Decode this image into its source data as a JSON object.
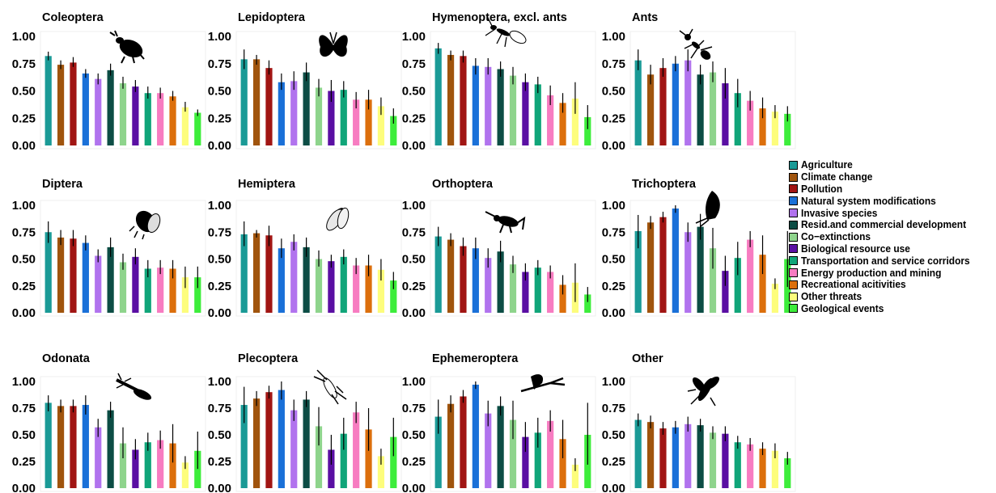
{
  "chart_data": {
    "type": "bar",
    "ylim": [
      0,
      1
    ],
    "yticks": [
      "0.00",
      "0.25",
      "0.50",
      "0.75",
      "1.00"
    ],
    "categories": [
      "Agriculture",
      "Climate change",
      "Pollution",
      "Natural system modifications",
      "Invasive species",
      "Resid.and commercial development",
      "Co−extinctions",
      "Biological resource use",
      "Transportation and service corridors",
      "Energy production and mining",
      "Recreational acitivities",
      "Other threats",
      "Geological events"
    ],
    "colors": [
      "#1a9a96",
      "#a0540d",
      "#a11513",
      "#1a70d8",
      "#b173ee",
      "#0c4d45",
      "#8ed48c",
      "#5a0fa3",
      "#10a579",
      "#f77cc1",
      "#dc6f0c",
      "#fdfd7c",
      "#3ded3b"
    ],
    "legend_position": "right",
    "panels": [
      {
        "title": "Coleoptera",
        "icon": "beetle-icon",
        "values": [
          0.82,
          0.74,
          0.76,
          0.66,
          0.61,
          0.69,
          0.57,
          0.54,
          0.48,
          0.48,
          0.45,
          0.35,
          0.3
        ],
        "lower": [
          0.78,
          0.7,
          0.72,
          0.62,
          0.56,
          0.64,
          0.52,
          0.49,
          0.43,
          0.43,
          0.41,
          0.31,
          0.27
        ],
        "upper": [
          0.86,
          0.78,
          0.81,
          0.7,
          0.66,
          0.75,
          0.63,
          0.6,
          0.54,
          0.53,
          0.5,
          0.4,
          0.33
        ]
      },
      {
        "title": "Lepidoptera",
        "icon": "butterfly-icon",
        "values": [
          0.79,
          0.79,
          0.71,
          0.58,
          0.59,
          0.67,
          0.53,
          0.5,
          0.51,
          0.42,
          0.42,
          0.36,
          0.27
        ],
        "lower": [
          0.7,
          0.74,
          0.65,
          0.51,
          0.51,
          0.59,
          0.45,
          0.4,
          0.44,
          0.34,
          0.33,
          0.28,
          0.2
        ],
        "upper": [
          0.88,
          0.83,
          0.78,
          0.66,
          0.68,
          0.76,
          0.61,
          0.6,
          0.59,
          0.49,
          0.51,
          0.44,
          0.34
        ]
      },
      {
        "title": "Hymenoptera, excl. ants",
        "icon": "wasp-icon",
        "values": [
          0.89,
          0.83,
          0.82,
          0.73,
          0.72,
          0.7,
          0.64,
          0.58,
          0.56,
          0.46,
          0.39,
          0.43,
          0.26
        ],
        "lower": [
          0.84,
          0.78,
          0.76,
          0.65,
          0.65,
          0.63,
          0.56,
          0.5,
          0.48,
          0.37,
          0.3,
          0.29,
          0.15
        ],
        "upper": [
          0.94,
          0.87,
          0.87,
          0.8,
          0.8,
          0.77,
          0.72,
          0.66,
          0.63,
          0.55,
          0.48,
          0.58,
          0.37
        ]
      },
      {
        "title": "Ants",
        "icon": "ant-icon",
        "values": [
          0.78,
          0.65,
          0.71,
          0.75,
          0.78,
          0.65,
          0.67,
          0.57,
          0.48,
          0.41,
          0.34,
          0.31,
          0.29
        ],
        "lower": [
          0.69,
          0.56,
          0.63,
          0.68,
          0.68,
          0.56,
          0.58,
          0.43,
          0.35,
          0.32,
          0.25,
          0.25,
          0.22
        ],
        "upper": [
          0.88,
          0.74,
          0.8,
          0.82,
          0.88,
          0.74,
          0.77,
          0.71,
          0.61,
          0.5,
          0.44,
          0.37,
          0.36
        ]
      },
      {
        "title": "Diptera",
        "icon": "fly-icon",
        "values": [
          0.75,
          0.7,
          0.69,
          0.65,
          0.53,
          0.61,
          0.47,
          0.52,
          0.41,
          0.42,
          0.41,
          0.33,
          0.33
        ],
        "lower": [
          0.65,
          0.63,
          0.62,
          0.58,
          0.47,
          0.52,
          0.4,
          0.45,
          0.33,
          0.36,
          0.32,
          0.23,
          0.23
        ],
        "upper": [
          0.85,
          0.77,
          0.77,
          0.72,
          0.59,
          0.7,
          0.55,
          0.6,
          0.49,
          0.49,
          0.49,
          0.43,
          0.43
        ]
      },
      {
        "title": "Hemiptera",
        "icon": "cicada-icon",
        "values": [
          0.73,
          0.74,
          0.72,
          0.6,
          0.66,
          0.61,
          0.5,
          0.48,
          0.52,
          0.44,
          0.44,
          0.4,
          0.3
        ],
        "lower": [
          0.62,
          0.7,
          0.62,
          0.51,
          0.58,
          0.52,
          0.43,
          0.42,
          0.45,
          0.36,
          0.34,
          0.3,
          0.22
        ],
        "upper": [
          0.85,
          0.77,
          0.81,
          0.69,
          0.73,
          0.7,
          0.58,
          0.54,
          0.59,
          0.51,
          0.54,
          0.5,
          0.38
        ]
      },
      {
        "title": "Orthoptera",
        "icon": "cricket-icon",
        "values": [
          0.71,
          0.68,
          0.62,
          0.6,
          0.51,
          0.57,
          0.45,
          0.38,
          0.42,
          0.38,
          0.26,
          0.28,
          0.17
        ],
        "lower": [
          0.62,
          0.62,
          0.53,
          0.5,
          0.42,
          0.47,
          0.37,
          0.3,
          0.35,
          0.32,
          0.17,
          0.1,
          0.1
        ],
        "upper": [
          0.8,
          0.74,
          0.7,
          0.7,
          0.6,
          0.67,
          0.53,
          0.46,
          0.49,
          0.44,
          0.35,
          0.46,
          0.24
        ]
      },
      {
        "title": "Trichoptera",
        "icon": "caddisfly-icon",
        "values": [
          0.76,
          0.84,
          0.89,
          0.97,
          0.75,
          0.8,
          0.6,
          0.39,
          0.51,
          0.68,
          0.54,
          0.27,
          0.5
        ],
        "lower": [
          0.6,
          0.78,
          0.84,
          0.93,
          0.66,
          0.68,
          0.41,
          0.25,
          0.35,
          0.61,
          0.36,
          0.22,
          0.24
        ],
        "upper": [
          0.91,
          0.9,
          0.94,
          1.0,
          0.84,
          0.92,
          0.79,
          0.53,
          0.66,
          0.76,
          0.72,
          0.32,
          0.76
        ]
      },
      {
        "title": "Odonata",
        "icon": "dragonfly-icon",
        "values": [
          0.8,
          0.77,
          0.77,
          0.78,
          0.57,
          0.73,
          0.42,
          0.36,
          0.43,
          0.45,
          0.42,
          0.24,
          0.35
        ],
        "lower": [
          0.72,
          0.71,
          0.71,
          0.69,
          0.48,
          0.66,
          0.28,
          0.27,
          0.35,
          0.37,
          0.24,
          0.18,
          0.18
        ],
        "upper": [
          0.87,
          0.83,
          0.83,
          0.87,
          0.65,
          0.81,
          0.57,
          0.46,
          0.52,
          0.54,
          0.6,
          0.3,
          0.53
        ]
      },
      {
        "title": "Plecoptera",
        "icon": "stonefly-icon",
        "values": [
          0.78,
          0.84,
          0.9,
          0.92,
          0.73,
          0.83,
          0.58,
          0.36,
          0.51,
          0.71,
          0.55,
          0.3,
          0.48
        ],
        "lower": [
          0.61,
          0.77,
          0.84,
          0.83,
          0.63,
          0.76,
          0.4,
          0.22,
          0.36,
          0.61,
          0.35,
          0.22,
          0.3
        ],
        "upper": [
          0.95,
          0.91,
          0.96,
          1.0,
          0.83,
          0.91,
          0.76,
          0.5,
          0.66,
          0.81,
          0.75,
          0.37,
          0.66
        ]
      },
      {
        "title": "Ephemeroptera",
        "icon": "mayfly-icon",
        "values": [
          0.67,
          0.79,
          0.86,
          0.97,
          0.7,
          0.77,
          0.64,
          0.48,
          0.52,
          0.63,
          0.46,
          0.22,
          0.5
        ],
        "lower": [
          0.51,
          0.71,
          0.8,
          0.93,
          0.58,
          0.68,
          0.46,
          0.34,
          0.38,
          0.53,
          0.28,
          0.16,
          0.22
        ],
        "upper": [
          0.83,
          0.87,
          0.92,
          1.0,
          0.82,
          0.86,
          0.82,
          0.62,
          0.66,
          0.73,
          0.64,
          0.28,
          0.8
        ]
      },
      {
        "title": "Other",
        "icon": "insect-icon",
        "values": [
          0.64,
          0.62,
          0.56,
          0.57,
          0.6,
          0.59,
          0.52,
          0.51,
          0.43,
          0.41,
          0.37,
          0.35,
          0.28
        ],
        "lower": [
          0.58,
          0.56,
          0.5,
          0.51,
          0.53,
          0.53,
          0.46,
          0.44,
          0.37,
          0.35,
          0.31,
          0.28,
          0.22
        ],
        "upper": [
          0.7,
          0.68,
          0.62,
          0.63,
          0.67,
          0.65,
          0.58,
          0.58,
          0.49,
          0.47,
          0.43,
          0.42,
          0.34
        ]
      }
    ]
  }
}
